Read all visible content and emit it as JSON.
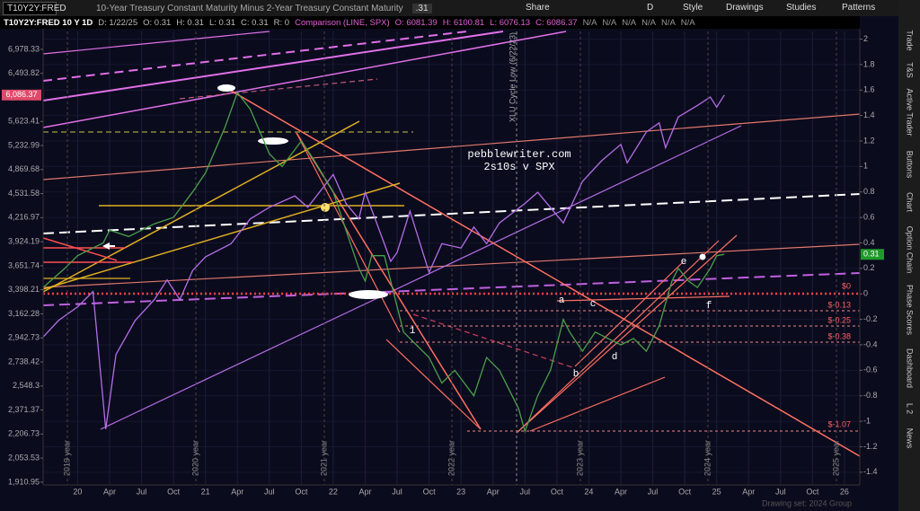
{
  "toolbar": {
    "symbol": "T10Y2Y:FRED",
    "description": "10-Year Treasury Constant Maturity Minus 2-Year Treasury Constant Maturity",
    "last": ".31",
    "buttons": [
      "Share",
      "D",
      "Style",
      "Drawings",
      "Studies",
      "Patterns"
    ]
  },
  "header": {
    "symbol": "T10Y2Y:FRED 10 Y 1D",
    "main": [
      "D: 1/22/25",
      "O: 0.31",
      "H: 0.31",
      "L: 0.31",
      "C: 0.31",
      "R: 0"
    ],
    "comparison": [
      "Comparison (LINE, SPX)",
      "O: 6081.39",
      "H: 6100.81",
      "L: 6076.13",
      "C: 6086.37"
    ],
    "na": [
      "N/A",
      "N/A",
      "N/A",
      "N/A",
      "N/A",
      "N/A"
    ]
  },
  "side_tabs": [
    "Trade",
    "T&S",
    "Active Trader",
    "Buttons",
    "Chart",
    "Option Chain",
    "Phase Scores",
    "Dashboard",
    "L 2",
    "News"
  ],
  "watermark": "Drawing set: 2024 Group",
  "annotations": {
    "site": "pebblewriter.com",
    "subtitle": "2s10s v SPX",
    "cycle_note": "XLU Cycle Low (6/22/23)",
    "years": [
      "2019 year",
      "2020 year",
      "2021 year",
      "2022 year",
      "2023 year",
      "2024 year",
      "2025 year"
    ],
    "waves": [
      "1",
      "a",
      "b",
      "c",
      "d",
      "e",
      "f"
    ],
    "fib_levels": [
      "$0",
      "$-0.13",
      "$-0.25",
      "$-0.38",
      "$-1.07"
    ]
  },
  "chart_data": {
    "type": "line",
    "log_y": true,
    "xlim": [
      2019.73,
      2026.12
    ],
    "xticks": [
      {
        "value": 2020,
        "label": "20"
      },
      {
        "value": 2020.25,
        "label": "Apr"
      },
      {
        "value": 2020.5,
        "label": "Jul"
      },
      {
        "value": 2020.75,
        "label": "Oct"
      },
      {
        "value": 2021,
        "label": "21"
      },
      {
        "value": 2021.25,
        "label": "Apr"
      },
      {
        "value": 2021.5,
        "label": "Jul"
      },
      {
        "value": 2021.75,
        "label": "Oct"
      },
      {
        "value": 2022,
        "label": "22"
      },
      {
        "value": 2022.25,
        "label": "Apr"
      },
      {
        "value": 2022.5,
        "label": "Jul"
      },
      {
        "value": 2022.75,
        "label": "Oct"
      },
      {
        "value": 2023,
        "label": "23"
      },
      {
        "value": 2023.25,
        "label": "Apr"
      },
      {
        "value": 2023.5,
        "label": "Jul"
      },
      {
        "value": 2023.75,
        "label": "Oct"
      },
      {
        "value": 2024,
        "label": "24"
      },
      {
        "value": 2024.25,
        "label": "Apr"
      },
      {
        "value": 2024.5,
        "label": "Jul"
      },
      {
        "value": 2024.75,
        "label": "Oct"
      },
      {
        "value": 2025,
        "label": "25"
      },
      {
        "value": 2025.25,
        "label": "Apr"
      },
      {
        "value": 2025.5,
        "label": "Jul"
      },
      {
        "value": 2025.75,
        "label": "Oct"
      },
      {
        "value": 2026,
        "label": "26"
      }
    ],
    "ylim": [
      1895,
      7362
    ],
    "yticks": [
      {
        "value": 6978.33,
        "label": "6,978.33"
      },
      {
        "value": 6493.82,
        "label": "6,493.82"
      },
      {
        "value": 5623.41,
        "label": "5,623.41"
      },
      {
        "value": 5232.99,
        "label": "5,232.99"
      },
      {
        "value": 4869.68,
        "label": "4,869.68"
      },
      {
        "value": 4531.58,
        "label": "4,531.58"
      },
      {
        "value": 4216.97,
        "label": "4,216.97"
      },
      {
        "value": 3924.19,
        "label": "3,924.19"
      },
      {
        "value": 3651.74,
        "label": "3,651.74"
      },
      {
        "value": 3398.21,
        "label": "3,398.21"
      },
      {
        "value": 3162.28,
        "label": "3,162.28"
      },
      {
        "value": 2942.73,
        "label": "2,942.73"
      },
      {
        "value": 2738.42,
        "label": "2,738.42"
      },
      {
        "value": 2548.3,
        "label": "2,548.3"
      },
      {
        "value": 2371.37,
        "label": "2,371.37"
      },
      {
        "value": 2206.73,
        "label": "2,206.73"
      },
      {
        "value": 2053.53,
        "label": "2,053.53"
      },
      {
        "value": 1910.95,
        "label": "1,910.95"
      }
    ],
    "y2lim": [
      -1.5,
      2.06
    ],
    "y2ticks": [
      2,
      1.8,
      1.6,
      1.4,
      1.2,
      1,
      0.8,
      0.6,
      0.4,
      0.2,
      0,
      -0.2,
      -0.4,
      -0.6,
      -0.8,
      -1,
      -1.2,
      -1.4
    ],
    "grid": true,
    "y_last": {
      "value": 6086.37,
      "label": "6,086.37"
    },
    "y2_last": 0.31,
    "series": [
      {
        "name": "SPX",
        "color": "#b46ee6",
        "x": [
          2019.73,
          2019.85,
          2020.0,
          2020.12,
          2020.22,
          2020.3,
          2020.45,
          2020.6,
          2020.7,
          2020.8,
          2020.9,
          2021.0,
          2021.2,
          2021.35,
          2021.5,
          2021.7,
          2021.8,
          2022.0,
          2022.1,
          2022.2,
          2022.25,
          2022.4,
          2022.45,
          2022.5,
          2022.6,
          2022.75,
          2022.85,
          2023.0,
          2023.1,
          2023.2,
          2023.3,
          2023.5,
          2023.6,
          2023.8,
          2023.95,
          2024.1,
          2024.25,
          2024.3,
          2024.45,
          2024.55,
          2024.6,
          2024.7,
          2024.85,
          2024.95,
          2025.0,
          2025.06
        ],
        "values": [
          2950,
          3100,
          3230,
          3380,
          2240,
          2800,
          3100,
          3300,
          3500,
          3300,
          3600,
          3750,
          3900,
          4200,
          4350,
          4500,
          4350,
          4800,
          4400,
          4200,
          4550,
          3900,
          3700,
          3800,
          4300,
          3580,
          3900,
          3850,
          4100,
          3900,
          4150,
          4400,
          4550,
          4150,
          4700,
          5000,
          5250,
          4970,
          5450,
          5600,
          5200,
          5700,
          5900,
          6050,
          5870,
          6086.37
        ]
      },
      {
        "name": "T10Y2Y:FRED",
        "color": "#4aa04a",
        "axis": "y2",
        "x": [
          2019.73,
          2019.9,
          2020.0,
          2020.2,
          2020.25,
          2020.4,
          2020.5,
          2020.6,
          2020.75,
          2020.9,
          2021.0,
          2021.15,
          2021.25,
          2021.35,
          2021.5,
          2021.6,
          2021.75,
          2021.85,
          2022.0,
          2022.1,
          2022.2,
          2022.25,
          2022.3,
          2022.4,
          2022.45,
          2022.5,
          2022.55,
          2022.65,
          2022.75,
          2022.85,
          2022.95,
          2023.1,
          2023.2,
          2023.3,
          2023.45,
          2023.5,
          2023.6,
          2023.7,
          2023.8,
          2023.85,
          2023.95,
          2024.05,
          2024.15,
          2024.25,
          2024.35,
          2024.45,
          2024.55,
          2024.65,
          2024.7,
          2024.78,
          2024.85,
          2024.95,
          2025.0,
          2025.06
        ],
        "values": [
          0.05,
          0.2,
          0.3,
          0.4,
          0.5,
          0.45,
          0.5,
          0.55,
          0.6,
          0.8,
          0.95,
          1.3,
          1.58,
          1.45,
          1.1,
          1.0,
          1.2,
          1.05,
          0.8,
          0.5,
          0.2,
          0.1,
          0.3,
          0.3,
          0.1,
          -0.1,
          -0.3,
          -0.4,
          -0.5,
          -0.7,
          -0.6,
          -0.8,
          -0.5,
          -0.6,
          -0.9,
          -1.08,
          -0.8,
          -0.6,
          -0.2,
          -0.3,
          -0.45,
          -0.3,
          -0.35,
          -0.4,
          -0.35,
          -0.45,
          -0.25,
          0.1,
          0.2,
          0.1,
          0.05,
          0.2,
          0.3,
          0.31
        ]
      }
    ]
  }
}
